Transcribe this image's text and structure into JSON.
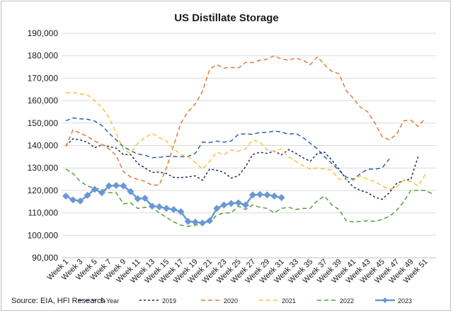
{
  "chart_data": {
    "type": "line",
    "title": "US Distillate Storage",
    "source": "Source: EIA, HFI Research",
    "ylim": [
      90000,
      190000
    ],
    "yticks": [
      90000,
      100000,
      110000,
      120000,
      130000,
      140000,
      150000,
      160000,
      170000,
      180000,
      190000
    ],
    "ytick_labels": [
      "90,000",
      "100,000",
      "110,000",
      "120,000",
      "130,000",
      "140,000",
      "150,000",
      "160,000",
      "170,000",
      "180,000",
      "190,000"
    ],
    "x_tick_labels": [
      "Week 1",
      "Week 3",
      "Week 5",
      "Week 7",
      "Week 9",
      "Week 11",
      "Week 13",
      "Week 15",
      "Week 17",
      "Week 19",
      "Week 21",
      "Week 23",
      "Week 25",
      "Week 27",
      "Week 29",
      "Week 31",
      "Week 33",
      "Week 35",
      "Week 37",
      "Week 39",
      "Week 41",
      "Week 43",
      "Week 45",
      "Week 47",
      "Week 49",
      "Week 51"
    ],
    "grid": true,
    "legend_position": "bottom",
    "series": [
      {
        "name": "5-Year",
        "color": "#2f5fb3",
        "dash": "6,4",
        "marker": "none",
        "values": [
          151000,
          152300,
          151900,
          151700,
          150900,
          149000,
          145500,
          142500,
          139500,
          137700,
          136200,
          135700,
          134600,
          134700,
          135200,
          135100,
          135000,
          135100,
          136500,
          141500,
          141300,
          142000,
          141500,
          142000,
          145000,
          145200,
          145000,
          145800,
          145800,
          146500,
          146000,
          145000,
          145400,
          143500,
          141000,
          138500,
          135000,
          132000,
          129000,
          126000,
          125000,
          127500,
          129500,
          129500,
          130000,
          134000
        ]
      },
      {
        "name": "2019",
        "color": "#1f2a5c",
        "dash": "3,3",
        "marker": "none",
        "values": [
          140000,
          143000,
          142500,
          141500,
          139000,
          140300,
          139500,
          138800,
          136000,
          136000,
          132000,
          130000,
          128000,
          128200,
          127500,
          125800,
          125700,
          126000,
          126500,
          124500,
          129500,
          129000,
          128000,
          125500,
          126500,
          130500,
          136000,
          137000,
          136500,
          137500,
          135800,
          138200,
          136500,
          134500,
          133000,
          136500,
          137000,
          133500,
          129500,
          125000,
          121500,
          120000,
          119000,
          117000,
          116000,
          119000,
          123000,
          124500,
          125000,
          135000
        ]
      },
      {
        "name": "2020",
        "color": "#e07b39",
        "dash": "6,4",
        "marker": "none",
        "values": [
          139500,
          147000,
          145500,
          144000,
          142000,
          140500,
          138500,
          135500,
          128500,
          126000,
          125000,
          124000,
          122300,
          122500,
          130000,
          140000,
          150000,
          155000,
          158500,
          164000,
          174000,
          176000,
          174500,
          174800,
          174500,
          177000,
          177000,
          178000,
          178500,
          180000,
          178500,
          178000,
          179000,
          178000,
          176000,
          179500,
          176000,
          173000,
          172000,
          164500,
          161000,
          157000,
          155000,
          150000,
          144000,
          142500,
          145000,
          151000,
          151300,
          148500,
          152000
        ]
      },
      {
        "name": "2021",
        "color": "#f5c242",
        "dash": "6,4",
        "marker": "none",
        "values": [
          163500,
          163700,
          163000,
          162600,
          160000,
          157000,
          152500,
          145500,
          138000,
          136500,
          141000,
          143500,
          145500,
          143500,
          142000,
          138500,
          136000,
          135000,
          132500,
          129500,
          133000,
          137000,
          136000,
          138000,
          137500,
          138500,
          142500,
          141500,
          138000,
          137500,
          138500,
          135000,
          133000,
          131000,
          129500,
          130000,
          129500,
          129000,
          125000,
          125000,
          124500,
          126500,
          125000,
          124000,
          122000,
          120500,
          121500,
          124500,
          124000,
          122000,
          127000
        ]
      },
      {
        "name": "2022",
        "color": "#5c9c3a",
        "dash": "6,4",
        "marker": "none",
        "values": [
          129500,
          127500,
          124000,
          122000,
          121000,
          120500,
          119000,
          119000,
          114000,
          114500,
          112000,
          112500,
          112500,
          110000,
          108000,
          106000,
          104500,
          104000,
          104500,
          105000,
          106000,
          109000,
          110000,
          110000,
          113000,
          111500,
          113500,
          112500,
          112000,
          110000,
          112000,
          112500,
          111500,
          112000,
          112000,
          115500,
          117500,
          113500,
          111500,
          106500,
          106000,
          106200,
          106500,
          106200,
          107000,
          108500,
          111000,
          115000,
          120000,
          120000,
          120000,
          118500
        ]
      },
      {
        "name": "2023",
        "color": "#6a98d4",
        "dash": "",
        "marker": "diamond",
        "values": [
          117500,
          115800,
          115300,
          117800,
          120500,
          119000,
          122000,
          122200,
          122000,
          119500,
          116300,
          116500,
          113000,
          112700,
          112000,
          111500,
          110500,
          106200,
          105900,
          105500,
          106500,
          112000,
          113500,
          114200,
          114500,
          113500,
          118000,
          118200,
          118000,
          117500,
          116800
        ]
      }
    ]
  }
}
